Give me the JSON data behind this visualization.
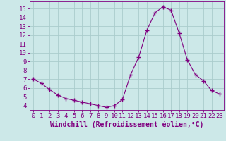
{
  "x": [
    0,
    1,
    2,
    3,
    4,
    5,
    6,
    7,
    8,
    9,
    10,
    11,
    12,
    13,
    14,
    15,
    16,
    17,
    18,
    19,
    20,
    21,
    22,
    23
  ],
  "y": [
    7.0,
    6.5,
    5.8,
    5.2,
    4.8,
    4.6,
    4.4,
    4.2,
    4.0,
    3.8,
    4.0,
    4.7,
    7.5,
    9.5,
    12.5,
    14.5,
    15.2,
    14.8,
    12.2,
    9.2,
    7.5,
    6.8,
    5.7,
    5.3
  ],
  "line_color": "#800080",
  "marker": "+",
  "marker_color": "#800080",
  "bg_color": "#cce8e8",
  "grid_color": "#aacccc",
  "axis_label_color": "#800080",
  "tick_color": "#800080",
  "xlabel": "Windchill (Refroidissement éolien,°C)",
  "xlim": [
    -0.5,
    23.5
  ],
  "ylim": [
    3.5,
    15.8
  ],
  "yticks": [
    4,
    5,
    6,
    7,
    8,
    9,
    10,
    11,
    12,
    13,
    14,
    15
  ],
  "xticks": [
    0,
    1,
    2,
    3,
    4,
    5,
    6,
    7,
    8,
    9,
    10,
    11,
    12,
    13,
    14,
    15,
    16,
    17,
    18,
    19,
    20,
    21,
    22,
    23
  ],
  "spine_color": "#800080",
  "title_color": "#800080",
  "font_size": 6.5
}
